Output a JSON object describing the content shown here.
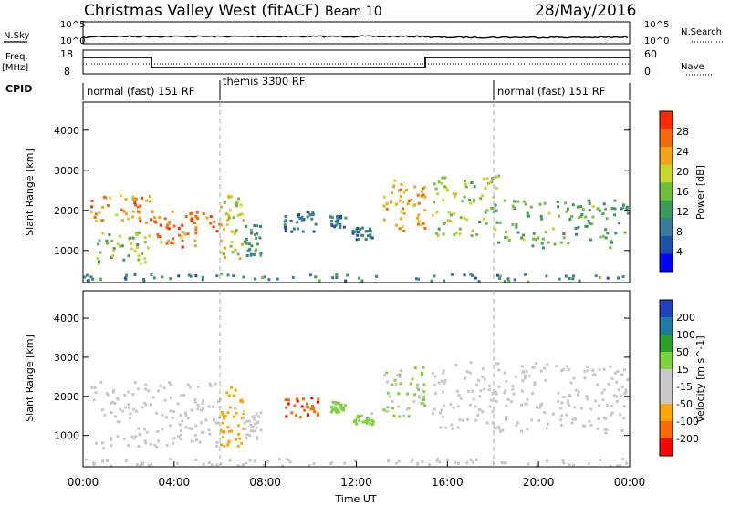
{
  "header": {
    "station": "Christmas Valley West (fitACF)",
    "beam": "Beam 10",
    "date": "28/May/2016"
  },
  "top_panels": {
    "nsky_label": "N.Sky",
    "nsearch_label": "N.Search",
    "nsky_ticks": [
      "10^5",
      "10^0"
    ],
    "freq_label": "Freq.",
    "freq_unit": "[MHz]",
    "freq_ticks": [
      "18",
      "8"
    ],
    "nave_label": "Nave",
    "nave_ticks": [
      "60",
      "0"
    ],
    "cpid_label": "CPID"
  },
  "cpid_segments": [
    {
      "start": 0,
      "end": 6,
      "label": "normal (fast) 151 RF"
    },
    {
      "start": 6,
      "end": 18,
      "label": "themis 3300 RF"
    },
    {
      "start": 18,
      "end": 24,
      "label": "normal (fast) 151 RF"
    }
  ],
  "colors": {
    "power": [
      "#0000ff",
      "#1f4fa8",
      "#3a7a9e",
      "#3a9a5a",
      "#6fbf3a",
      "#c8d62a",
      "#f2a516",
      "#f26a0c",
      "#ff2a00"
    ],
    "velocity": [
      "#ff0000",
      "#ff6a00",
      "#ffa500",
      "#c8c8c8",
      "#c8c8c8",
      "#7ed23a",
      "#2aa02a",
      "#1f7aa0",
      "#2040c0"
    ]
  },
  "chart_data": [
    {
      "type": "heatmap",
      "name": "power",
      "ylabel": "Slant Range [km]",
      "yticks": [
        1000,
        2000,
        3000,
        4000
      ],
      "ylim": [
        200,
        4700
      ],
      "xlim": [
        0,
        24
      ],
      "colorbar": {
        "label": "Power [dB]",
        "ticks": [
          "28",
          "24",
          "20",
          "16",
          "12",
          "8",
          "4"
        ],
        "range": [
          0,
          32
        ]
      },
      "blobs": [
        {
          "t0": 0.3,
          "t1": 3.0,
          "r0": 1700,
          "r1": 2400,
          "v": 26
        },
        {
          "t0": 0.5,
          "t1": 3.0,
          "r0": 700,
          "r1": 1500,
          "v": 16
        },
        {
          "t0": 3.0,
          "t1": 6.0,
          "r0": 1100,
          "r1": 2000,
          "v": 28
        },
        {
          "t0": 6.0,
          "t1": 7.0,
          "r0": 800,
          "r1": 2400,
          "v": 20
        },
        {
          "t0": 7.0,
          "t1": 7.8,
          "r0": 900,
          "r1": 1700,
          "v": 12
        },
        {
          "t0": 8.8,
          "t1": 10.3,
          "r0": 1500,
          "r1": 2000,
          "v": 8
        },
        {
          "t0": 10.8,
          "t1": 11.5,
          "r0": 1600,
          "r1": 1900,
          "v": 8
        },
        {
          "t0": 11.8,
          "t1": 12.7,
          "r0": 1300,
          "r1": 1600,
          "v": 8
        },
        {
          "t0": 13.1,
          "t1": 15.0,
          "r0": 1500,
          "r1": 2800,
          "v": 24
        },
        {
          "t0": 15.3,
          "t1": 18.2,
          "r0": 1400,
          "r1": 2900,
          "v": 18
        },
        {
          "t0": 18.0,
          "t1": 23.9,
          "r0": 1100,
          "r1": 2300,
          "v": 14
        },
        {
          "t0": 0.0,
          "t1": 24.0,
          "r0": 250,
          "r1": 450,
          "v": 10
        }
      ]
    },
    {
      "type": "heatmap",
      "name": "velocity",
      "ylabel": "Slant Range [km]",
      "xlabel": "Time UT",
      "yticks": [
        1000,
        2000,
        3000,
        4000
      ],
      "ylim": [
        200,
        4700
      ],
      "xlim": [
        0,
        24
      ],
      "xticks": [
        "00:00",
        "04:00",
        "08:00",
        "12:00",
        "16:00",
        "20:00",
        "00:00"
      ],
      "colorbar": {
        "label": "Velocity [m s^-1]",
        "ticks": [
          "200",
          "100",
          "50",
          "15",
          "-15",
          "-50",
          "-100",
          "-200"
        ],
        "range": [
          -250,
          250
        ]
      },
      "blobs": [
        {
          "t0": 0.3,
          "t1": 6.0,
          "r0": 700,
          "r1": 2400,
          "v": 0
        },
        {
          "t0": 6.0,
          "t1": 7.0,
          "r0": 700,
          "r1": 2300,
          "v": -120
        },
        {
          "t0": 7.0,
          "t1": 7.8,
          "r0": 900,
          "r1": 1700,
          "v": 0
        },
        {
          "t0": 8.8,
          "t1": 10.3,
          "r0": 1500,
          "r1": 2000,
          "v": -200
        },
        {
          "t0": 10.8,
          "t1": 11.5,
          "r0": 1600,
          "r1": 1900,
          "v": 60
        },
        {
          "t0": 11.8,
          "t1": 12.7,
          "r0": 1300,
          "r1": 1600,
          "v": 60
        },
        {
          "t0": 13.1,
          "t1": 15.0,
          "r0": 1500,
          "r1": 2800,
          "v": 40
        },
        {
          "t0": 15.3,
          "t1": 23.9,
          "r0": 1100,
          "r1": 2900,
          "v": 0
        },
        {
          "t0": 0.0,
          "t1": 24.0,
          "r0": 250,
          "r1": 450,
          "v": -30
        }
      ]
    }
  ]
}
